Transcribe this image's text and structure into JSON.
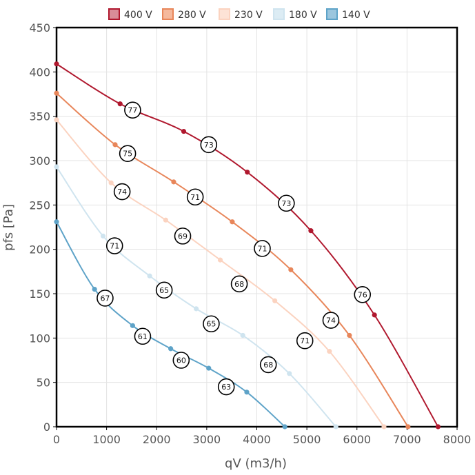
{
  "chart_data": {
    "type": "line",
    "title": "",
    "xlabel": "qV (m3/h)",
    "ylabel": "pfs [Pa]",
    "xlim": [
      0,
      8000
    ],
    "ylim": [
      0,
      450
    ],
    "xticks": [
      0,
      1000,
      2000,
      3000,
      4000,
      5000,
      6000,
      7000,
      8000
    ],
    "yticks": [
      0,
      50,
      100,
      150,
      200,
      250,
      300,
      350,
      400,
      450
    ],
    "grid": true,
    "legend_position": "top-center",
    "series": [
      {
        "name": "400 V",
        "color": "#b0182e",
        "legend_fill": "#d98c98",
        "x": [
          0,
          1270,
          2540,
          3810,
          5080,
          6350,
          7620
        ],
        "y": [
          409,
          364,
          333,
          287,
          221,
          126,
          0
        ],
        "annotations": [
          {
            "x": 1520,
            "y": 357,
            "label": "77"
          },
          {
            "x": 3040,
            "y": 318,
            "label": "73"
          },
          {
            "x": 4590,
            "y": 252,
            "label": "73"
          },
          {
            "x": 6110,
            "y": 149,
            "label": "76"
          }
        ]
      },
      {
        "name": "280 V",
        "color": "#e8865a",
        "legend_fill": "#f5b99d",
        "x": [
          0,
          1170,
          2340,
          3510,
          4680,
          5850,
          7020
        ],
        "y": [
          376,
          318,
          276,
          231,
          177,
          103,
          0
        ],
        "annotations": [
          {
            "x": 1420,
            "y": 308,
            "label": "75"
          },
          {
            "x": 2770,
            "y": 259,
            "label": "71"
          },
          {
            "x": 4110,
            "y": 201,
            "label": "71"
          },
          {
            "x": 5480,
            "y": 120,
            "label": "74"
          }
        ]
      },
      {
        "name": "230 V",
        "color": "#fbd3c0",
        "legend_fill": "#fde3d6",
        "x": [
          0,
          1090,
          2180,
          3270,
          4360,
          5450,
          6540
        ],
        "y": [
          346,
          275,
          233,
          188,
          142,
          85,
          0
        ],
        "annotations": [
          {
            "x": 1310,
            "y": 265,
            "label": "74"
          },
          {
            "x": 2520,
            "y": 215,
            "label": "69"
          },
          {
            "x": 3650,
            "y": 161,
            "label": "68"
          },
          {
            "x": 4960,
            "y": 97,
            "label": "71"
          }
        ]
      },
      {
        "name": "180 V",
        "color": "#cfe4ef",
        "legend_fill": "#dcecf4",
        "x": [
          0,
          930,
          1860,
          2790,
          3720,
          4650,
          5580
        ],
        "y": [
          293,
          215,
          170,
          133,
          103,
          60,
          0
        ],
        "annotations": [
          {
            "x": 1160,
            "y": 204,
            "label": "71"
          },
          {
            "x": 2150,
            "y": 154,
            "label": "65"
          },
          {
            "x": 3090,
            "y": 116,
            "label": "65"
          },
          {
            "x": 4230,
            "y": 70,
            "label": "68"
          }
        ]
      },
      {
        "name": "140 V",
        "color": "#5ea3c8",
        "legend_fill": "#9bc6de",
        "x": [
          0,
          760,
          1520,
          2280,
          3040,
          3800,
          4560
        ],
        "y": [
          231,
          155,
          114,
          88,
          66,
          39,
          0
        ],
        "annotations": [
          {
            "x": 970,
            "y": 145,
            "label": "67"
          },
          {
            "x": 1720,
            "y": 102,
            "label": "61"
          },
          {
            "x": 2490,
            "y": 75,
            "label": "60"
          },
          {
            "x": 3390,
            "y": 45,
            "label": "63"
          }
        ]
      }
    ]
  }
}
